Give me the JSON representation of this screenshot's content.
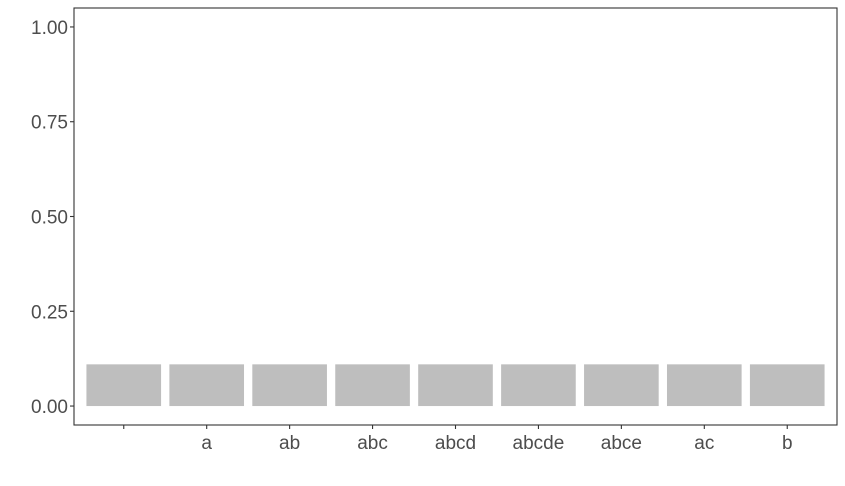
{
  "chart_data": {
    "type": "bar",
    "categories": [
      "",
      "a",
      "ab",
      "abc",
      "abcd",
      "abcde",
      "abce",
      "ac",
      "b"
    ],
    "values": [
      0.11,
      0.11,
      0.11,
      0.11,
      0.11,
      0.11,
      0.11,
      0.11,
      0.11
    ],
    "yticks": [
      "0.00",
      "0.25",
      "0.50",
      "0.75",
      "1.00"
    ],
    "ylim": [
      -0.05,
      1.05
    ],
    "title": "",
    "xlabel": "",
    "ylabel": "",
    "grid": false,
    "legend": "none",
    "bar_color": "#bebebe",
    "axis_color": "#333333",
    "tick_label_color": "#4d4d4d"
  }
}
